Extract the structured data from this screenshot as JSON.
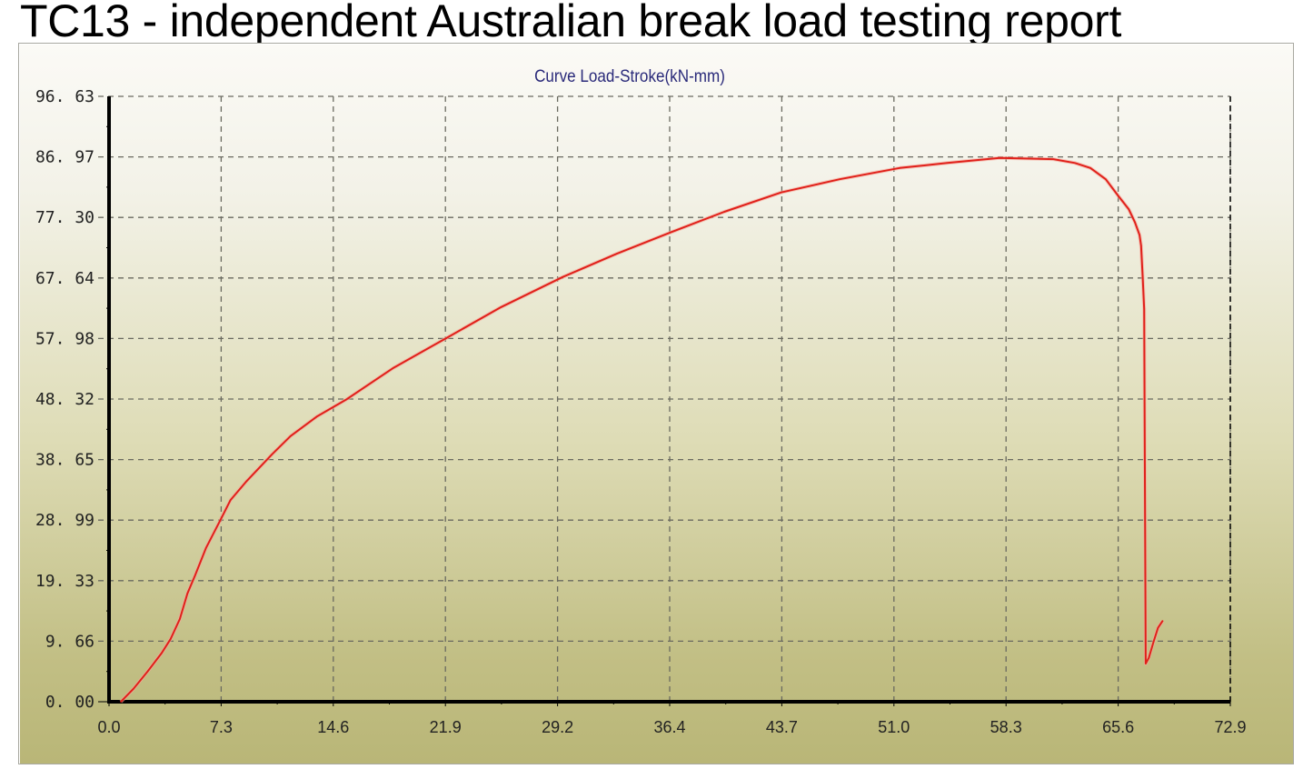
{
  "page": {
    "title": "TC13 - independent Australian break load testing report"
  },
  "chart_data": {
    "type": "line",
    "title": "Curve Load-Stroke(kN-mm)",
    "xlabel": "",
    "ylabel": "",
    "xlim": [
      0,
      72.9
    ],
    "ylim": [
      0,
      96.63
    ],
    "x_ticks": [
      "0.0",
      "7.3",
      "14.6",
      "21.9",
      "29.2",
      "36.4",
      "43.7",
      "51.0",
      "58.3",
      "65.6",
      "72.9"
    ],
    "y_ticks": [
      "0.00",
      "9.66",
      "19.33",
      "28.99",
      "38.65",
      "48.32",
      "57.98",
      "67.64",
      "77.30",
      "86.97",
      "96.63"
    ],
    "grid": true,
    "grid_style": "dashed",
    "series": [
      {
        "color": "#e0201a",
        "x": [
          0.77,
          1.6,
          2.5,
          3.4,
          4.0,
          4.6,
          5.1,
          5.6,
          6.3,
          7.3,
          7.9,
          8.9,
          10.6,
          11.8,
          13.5,
          15.4,
          18.5,
          21.9,
          25.5,
          29.5,
          33.0,
          36.6,
          40.0,
          43.7,
          47.5,
          51.4,
          54.5,
          57.9,
          61.4,
          62.8,
          63.8,
          64.8,
          65.6,
          66.3,
          66.7,
          67.0,
          67.1,
          67.2,
          67.3,
          67.4,
          67.6,
          67.9,
          68.2,
          68.5
        ],
        "y": [
          0,
          2.1,
          4.8,
          7.7,
          10.0,
          13.2,
          17.3,
          20.2,
          24.5,
          29.3,
          32.2,
          35.1,
          39.5,
          42.4,
          45.5,
          48.2,
          53.3,
          58.0,
          63.0,
          67.8,
          71.5,
          75.0,
          78.2,
          81.3,
          83.4,
          85.2,
          86.0,
          86.8,
          86.6,
          86.0,
          85.2,
          83.4,
          80.8,
          78.6,
          76.5,
          74.5,
          72.8,
          68.0,
          62.7,
          6.1,
          7.0,
          9.5,
          11.8,
          12.9
        ]
      }
    ],
    "background_gradient": [
      "#fbfaf6",
      "#b9b677"
    ],
    "axis_color": "#000000",
    "title_color": "#2a2a7a"
  }
}
